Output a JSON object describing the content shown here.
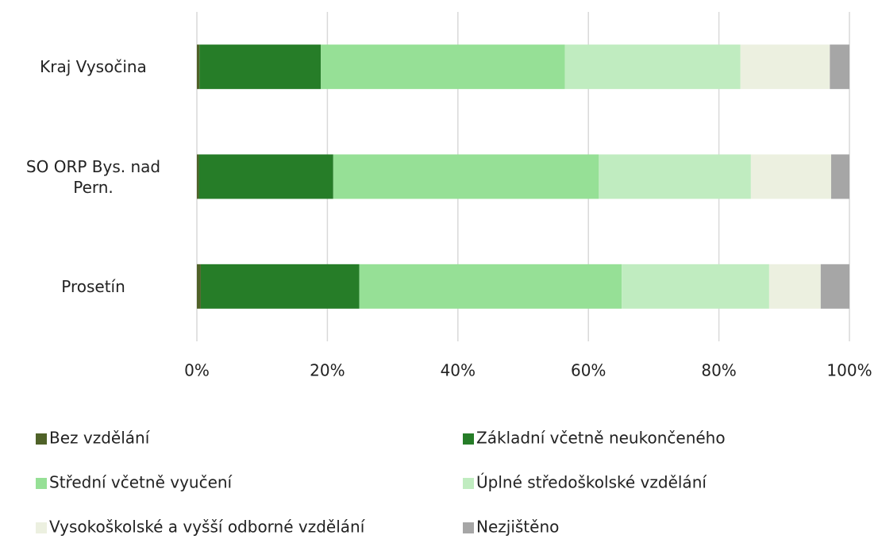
{
  "chart_data": {
    "type": "stacked-bar-horizontal",
    "categories": [
      "Kraj Vysočina",
      "SO ORP Bys. nad Pern.",
      "Prosetín"
    ],
    "series": [
      {
        "name": "Bez vzdělání",
        "color": "#4f6228",
        "values": [
          0.4,
          0.3,
          0.6
        ]
      },
      {
        "name": "Základní včetně neukončeného",
        "color": "#267d28",
        "values": [
          18.6,
          20.6,
          24.3
        ]
      },
      {
        "name": "Střední včetně vyučení",
        "color": "#96e096",
        "values": [
          37.4,
          40.7,
          40.2
        ]
      },
      {
        "name": "Úplné středoškolské vzdělání",
        "color": "#c0ecc0",
        "values": [
          26.9,
          23.3,
          22.6
        ]
      },
      {
        "name": "Vysokoškolské a vyšší odborné vzdělání",
        "color": "#ecf0e0",
        "values": [
          13.7,
          12.3,
          7.9
        ]
      },
      {
        "name": "Nezjištěno",
        "color": "#a6a6a6",
        "values": [
          3.0,
          2.8,
          4.4
        ]
      }
    ],
    "xlim": [
      0,
      100
    ],
    "xticks": [
      {
        "value": 0,
        "label": "0%"
      },
      {
        "value": 20,
        "label": "20%"
      },
      {
        "value": 40,
        "label": "40%"
      },
      {
        "value": 60,
        "label": "60%"
      },
      {
        "value": 80,
        "label": "80%"
      },
      {
        "value": 100,
        "label": "100%"
      }
    ],
    "grid": true
  }
}
